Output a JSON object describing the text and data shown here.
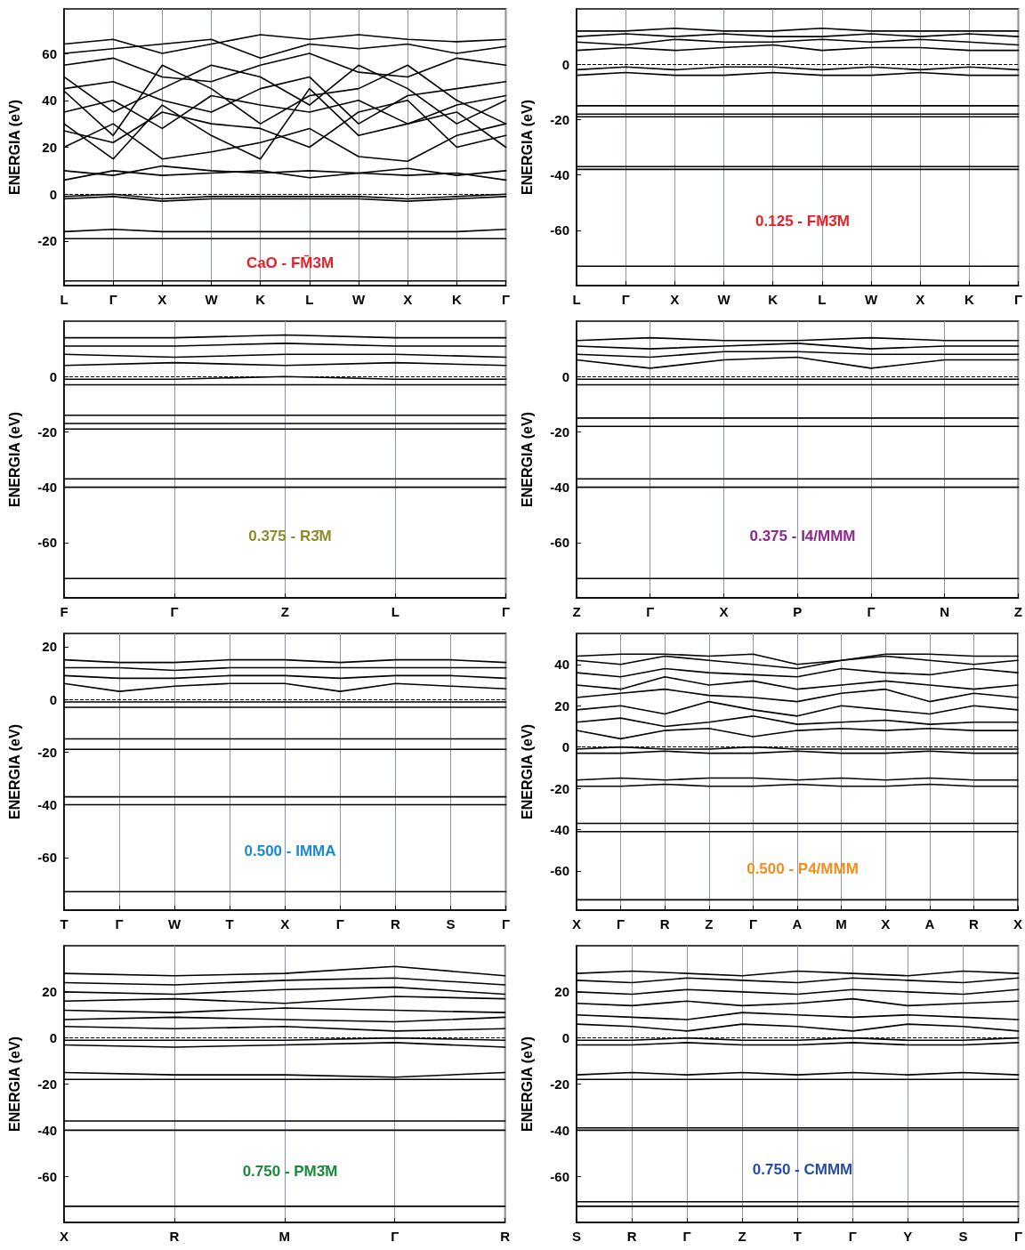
{
  "chart_data": [
    {
      "type": "line",
      "title": "CaO - FM̄3M",
      "ylabel": "ENERGIA (eV)",
      "color": "#000000",
      "marker": "none",
      "grid": "x",
      "ylim": [
        -39,
        79
      ],
      "yticks": [
        -20,
        0,
        20,
        40,
        60
      ],
      "categories": [
        "L",
        "Γ",
        "X",
        "W",
        "K",
        "L",
        "W",
        "X",
        "K",
        "Γ"
      ],
      "ref_lines": [
        {
          "axis": "y",
          "value": 0,
          "line_style": "dashed",
          "color": "#000000"
        }
      ],
      "series": [
        {
          "values": [
            -37,
            -37,
            -37,
            -37,
            -37,
            -37,
            -37,
            -37,
            -37,
            -37
          ]
        },
        {
          "values": [
            -19,
            -19,
            -19,
            -19,
            -19,
            -19,
            -19,
            -19,
            -19,
            -19
          ]
        },
        {
          "values": [
            -16,
            -15,
            -16,
            -16,
            -16,
            -16,
            -16,
            -16,
            -16,
            -15
          ]
        },
        {
          "values": [
            -1,
            0,
            -2,
            -1,
            -1,
            -1,
            -1,
            -2,
            -1,
            0
          ]
        },
        {
          "values": [
            -2,
            -1,
            -3,
            -2,
            -2,
            -2,
            -2,
            -3,
            -2,
            -1
          ]
        },
        {
          "values": [
            6,
            10,
            8,
            9,
            10,
            7,
            9,
            8,
            9,
            6
          ]
        },
        {
          "values": [
            10,
            8,
            12,
            10,
            9,
            10,
            9,
            11,
            8,
            10
          ]
        },
        {
          "values": [
            20,
            30,
            15,
            18,
            22,
            28,
            16,
            14,
            25,
            30
          ]
        },
        {
          "values": [
            27,
            22,
            35,
            30,
            28,
            20,
            35,
            40,
            20,
            25
          ]
        },
        {
          "values": [
            35,
            40,
            28,
            42,
            38,
            35,
            40,
            30,
            38,
            42
          ]
        },
        {
          "values": [
            45,
            48,
            40,
            35,
            45,
            50,
            30,
            42,
            45,
            48
          ]
        },
        {
          "values": [
            55,
            58,
            50,
            48,
            55,
            60,
            52,
            50,
            58,
            55
          ]
        },
        {
          "values": [
            60,
            62,
            64,
            66,
            58,
            64,
            62,
            64,
            60,
            63
          ]
        },
        {
          "values": [
            64,
            66,
            60,
            64,
            68,
            66,
            68,
            66,
            65,
            66
          ]
        },
        {
          "values": [
            44,
            25,
            55,
            45,
            30,
            42,
            45,
            55,
            40,
            30
          ]
        },
        {
          "values": [
            50,
            35,
            45,
            55,
            50,
            38,
            55,
            45,
            30,
            40
          ]
        },
        {
          "values": [
            30,
            15,
            38,
            25,
            15,
            45,
            25,
            30,
            35,
            20
          ]
        }
      ]
    },
    {
      "type": "line",
      "title": "0.125 - FM3̄M",
      "ylabel": "ENERGIA (eV)",
      "color": "#000000",
      "marker": "none",
      "grid": "x",
      "ylim": [
        -80,
        20
      ],
      "yticks": [
        -60,
        -40,
        -20,
        0
      ],
      "categories": [
        "L",
        "Γ",
        "X",
        "W",
        "K",
        "L",
        "W",
        "X",
        "K",
        "Γ"
      ],
      "ref_lines": [
        {
          "axis": "y",
          "value": 0,
          "line_style": "dashed",
          "color": "#000000"
        }
      ],
      "series": [
        {
          "values": [
            -73,
            -73,
            -73,
            -73,
            -73,
            -73,
            -73,
            -73,
            -73,
            -73
          ]
        },
        {
          "values": [
            -38,
            -38,
            -38,
            -38,
            -38,
            -38,
            -38,
            -38,
            -38,
            -38
          ]
        },
        {
          "values": [
            -37,
            -37,
            -37,
            -37,
            -37,
            -37,
            -37,
            -37,
            -37,
            -37
          ]
        },
        {
          "values": [
            -19,
            -19,
            -19,
            -19,
            -19,
            -19,
            -19,
            -19,
            -19,
            -19
          ]
        },
        {
          "values": [
            -18,
            -18,
            -18,
            -18,
            -18,
            -18,
            -18,
            -18,
            -18,
            -18
          ]
        },
        {
          "values": [
            -15,
            -15,
            -15,
            -15,
            -15,
            -15,
            -15,
            -15,
            -15,
            -15
          ]
        },
        {
          "values": [
            -4,
            -3,
            -4,
            -4,
            -3,
            -4,
            -4,
            -3,
            -4,
            -4
          ]
        },
        {
          "values": [
            -2,
            -1,
            -2,
            -1,
            -1,
            -2,
            -1,
            -2,
            -1,
            -2
          ]
        },
        {
          "values": [
            5,
            6,
            5,
            6,
            7,
            5,
            6,
            6,
            5,
            5
          ]
        },
        {
          "values": [
            8,
            7,
            9,
            8,
            8,
            9,
            8,
            9,
            8,
            7
          ]
        },
        {
          "values": [
            10,
            11,
            10,
            11,
            10,
            10,
            11,
            10,
            11,
            10
          ]
        },
        {
          "values": [
            12,
            12,
            13,
            12,
            12,
            13,
            12,
            12,
            12,
            12
          ]
        }
      ]
    },
    {
      "type": "line",
      "title": "0.375 - R3̄M",
      "ylabel": "ENERGIA (eV)",
      "color": "#000000",
      "marker": "none",
      "grid": "x",
      "ylim": [
        -80,
        20
      ],
      "yticks": [
        -60,
        -40,
        -20,
        0
      ],
      "categories": [
        "F",
        "Γ",
        "Z",
        "L",
        "Γ"
      ],
      "ref_lines": [
        {
          "axis": "y",
          "value": 0,
          "line_style": "dashed",
          "color": "#000000"
        }
      ],
      "series": [
        {
          "values": [
            -73,
            -73,
            -73,
            -73,
            -73
          ]
        },
        {
          "values": [
            -40,
            -40,
            -40,
            -40,
            -40
          ]
        },
        {
          "values": [
            -37,
            -37,
            -37,
            -37,
            -37
          ]
        },
        {
          "values": [
            -19,
            -19,
            -19,
            -19,
            -19
          ]
        },
        {
          "values": [
            -17,
            -17,
            -17,
            -17,
            -17
          ]
        },
        {
          "values": [
            -14,
            -14,
            -14,
            -14,
            -14
          ]
        },
        {
          "values": [
            -3,
            -3,
            -3,
            -3,
            -3
          ]
        },
        {
          "values": [
            -1,
            -1,
            0,
            -1,
            -1
          ]
        },
        {
          "values": [
            4,
            5,
            4,
            5,
            4
          ]
        },
        {
          "values": [
            8,
            7,
            8,
            8,
            7
          ]
        },
        {
          "values": [
            11,
            11,
            12,
            11,
            11
          ]
        },
        {
          "values": [
            14,
            14,
            15,
            14,
            14
          ]
        }
      ]
    },
    {
      "type": "line",
      "title": "0.375 - I4/MMM",
      "ylabel": "ENERGIA (eV)",
      "color": "#000000",
      "marker": "none",
      "grid": "x",
      "ylim": [
        -80,
        20
      ],
      "yticks": [
        -60,
        -40,
        -20,
        0
      ],
      "categories": [
        "Z",
        "Γ",
        "X",
        "P",
        "Γ",
        "N",
        "Z"
      ],
      "ref_lines": [
        {
          "axis": "y",
          "value": 0,
          "line_style": "dashed",
          "color": "#000000"
        }
      ],
      "series": [
        {
          "values": [
            -73,
            -73,
            -73,
            -73,
            -73,
            -73,
            -73
          ]
        },
        {
          "values": [
            -40,
            -40,
            -40,
            -40,
            -40,
            -40,
            -40
          ]
        },
        {
          "values": [
            -37,
            -37,
            -37,
            -37,
            -37,
            -37,
            -37
          ]
        },
        {
          "values": [
            -18,
            -18,
            -18,
            -18,
            -18,
            -18,
            -18
          ]
        },
        {
          "values": [
            -15,
            -15,
            -15,
            -15,
            -15,
            -15,
            -15
          ]
        },
        {
          "values": [
            -3,
            -3,
            -3,
            -3,
            -3,
            -3,
            -3
          ]
        },
        {
          "values": [
            -1,
            -1,
            -1,
            -1,
            -1,
            -1,
            -1
          ]
        },
        {
          "values": [
            6,
            3,
            6,
            7,
            3,
            6,
            6
          ]
        },
        {
          "values": [
            8,
            7,
            9,
            9,
            8,
            8,
            8
          ]
        },
        {
          "values": [
            11,
            10,
            11,
            12,
            10,
            11,
            11
          ]
        },
        {
          "values": [
            13,
            14,
            13,
            13,
            14,
            13,
            13
          ]
        }
      ]
    },
    {
      "type": "line",
      "title": "0.500 - IMMA",
      "ylabel": "ENERGIA (eV)",
      "color": "#000000",
      "marker": "none",
      "grid": "x",
      "ylim": [
        -80,
        25
      ],
      "yticks": [
        -60,
        -40,
        -20,
        0,
        20
      ],
      "categories": [
        "T",
        "Γ",
        "W",
        "T",
        "X",
        "Γ",
        "R",
        "S",
        "Γ"
      ],
      "ref_lines": [
        {
          "axis": "y",
          "value": 0,
          "line_style": "dashed",
          "color": "#000000"
        }
      ],
      "series": [
        {
          "values": [
            -73,
            -73,
            -73,
            -73,
            -73,
            -73,
            -73,
            -73,
            -73
          ]
        },
        {
          "values": [
            -40,
            -40,
            -40,
            -40,
            -40,
            -40,
            -40,
            -40,
            -40
          ]
        },
        {
          "values": [
            -37,
            -37,
            -37,
            -37,
            -37,
            -37,
            -37,
            -37,
            -37
          ]
        },
        {
          "values": [
            -19,
            -19,
            -19,
            -19,
            -19,
            -19,
            -19,
            -19,
            -19
          ]
        },
        {
          "values": [
            -15,
            -15,
            -15,
            -15,
            -15,
            -15,
            -15,
            -15,
            -15
          ]
        },
        {
          "values": [
            -3,
            -3,
            -3,
            -3,
            -3,
            -3,
            -3,
            -3,
            -3
          ]
        },
        {
          "values": [
            -1,
            -1,
            -1,
            -1,
            -1,
            -1,
            -1,
            -1,
            -1
          ]
        },
        {
          "values": [
            6,
            3,
            5,
            6,
            6,
            3,
            6,
            5,
            4
          ]
        },
        {
          "values": [
            9,
            8,
            8,
            9,
            9,
            8,
            9,
            9,
            8
          ]
        },
        {
          "values": [
            12,
            12,
            11,
            12,
            12,
            12,
            12,
            12,
            12
          ]
        },
        {
          "values": [
            15,
            14,
            14,
            15,
            15,
            14,
            15,
            15,
            14
          ]
        }
      ]
    },
    {
      "type": "line",
      "title": "0.500 - P4/MMM",
      "ylabel": "ENERGIA (eV)",
      "color": "#000000",
      "marker": "none",
      "grid": "x",
      "ylim": [
        -79,
        55
      ],
      "yticks": [
        -60,
        -40,
        -20,
        0,
        20,
        40
      ],
      "categories": [
        "X",
        "Γ",
        "R",
        "Z",
        "Γ",
        "A",
        "M",
        "X",
        "A",
        "R",
        "X"
      ],
      "ref_lines": [
        {
          "axis": "y",
          "value": 0,
          "line_style": "dashed",
          "color": "#000000"
        }
      ],
      "series": [
        {
          "values": [
            -74,
            -74,
            -74,
            -74,
            -74,
            -74,
            -74,
            -74,
            -74,
            -74,
            -74
          ]
        },
        {
          "values": [
            -41,
            -41,
            -41,
            -41,
            -41,
            -41,
            -41,
            -41,
            -41,
            -41,
            -41
          ]
        },
        {
          "values": [
            -37,
            -37,
            -37,
            -37,
            -37,
            -37,
            -37,
            -37,
            -37,
            -37,
            -37
          ]
        },
        {
          "values": [
            -19,
            -19,
            -18,
            -19,
            -19,
            -18,
            -19,
            -19,
            -18,
            -19,
            -19
          ]
        },
        {
          "values": [
            -16,
            -15,
            -16,
            -15,
            -15,
            -16,
            -15,
            -16,
            -15,
            -16,
            -16
          ]
        },
        {
          "values": [
            -3,
            -3,
            -2,
            -3,
            -3,
            -2,
            -3,
            -3,
            -2,
            -3,
            -3
          ]
        },
        {
          "values": [
            -1,
            0,
            -1,
            -1,
            0,
            -1,
            -1,
            -1,
            -1,
            -1,
            -1
          ]
        },
        {
          "values": [
            8,
            4,
            8,
            9,
            5,
            8,
            9,
            8,
            9,
            8,
            8
          ]
        },
        {
          "values": [
            12,
            14,
            10,
            12,
            15,
            11,
            12,
            13,
            11,
            12,
            12
          ]
        },
        {
          "values": [
            18,
            20,
            16,
            22,
            18,
            15,
            20,
            18,
            16,
            20,
            18
          ]
        },
        {
          "values": [
            24,
            26,
            28,
            25,
            24,
            22,
            26,
            28,
            22,
            26,
            24
          ]
        },
        {
          "values": [
            30,
            28,
            34,
            30,
            32,
            28,
            30,
            32,
            30,
            28,
            30
          ]
        },
        {
          "values": [
            36,
            34,
            38,
            36,
            35,
            34,
            38,
            36,
            35,
            38,
            36
          ]
        },
        {
          "values": [
            42,
            40,
            44,
            42,
            40,
            38,
            42,
            44,
            42,
            40,
            42
          ]
        },
        {
          "values": [
            44,
            45,
            45,
            44,
            45,
            40,
            42,
            45,
            45,
            44,
            44
          ]
        }
      ]
    },
    {
      "type": "line",
      "title": "0.750 - PM3̄M",
      "ylabel": "ENERGIA (eV)",
      "color": "#000000",
      "marker": "none",
      "grid": "x",
      "ylim": [
        -80,
        40
      ],
      "yticks": [
        -60,
        -40,
        -20,
        0,
        20
      ],
      "categories": [
        "X",
        "R",
        "M",
        "Γ",
        "R"
      ],
      "ref_lines": [
        {
          "axis": "y",
          "value": 0,
          "line_style": "dashed",
          "color": "#000000"
        }
      ],
      "series": [
        {
          "values": [
            -73,
            -73,
            -73,
            -73,
            -73
          ]
        },
        {
          "values": [
            -40,
            -40,
            -40,
            -40,
            -40
          ]
        },
        {
          "values": [
            -36,
            -36,
            -36,
            -36,
            -36
          ]
        },
        {
          "values": [
            -18,
            -18,
            -18,
            -18,
            -18
          ]
        },
        {
          "values": [
            -15,
            -16,
            -16,
            -17,
            -15
          ]
        },
        {
          "values": [
            -3,
            -4,
            -3,
            -2,
            -4
          ]
        },
        {
          "values": [
            -1,
            -1,
            -1,
            0,
            -1
          ]
        },
        {
          "values": [
            5,
            4,
            5,
            3,
            4
          ]
        },
        {
          "values": [
            8,
            9,
            8,
            7,
            9
          ]
        },
        {
          "values": [
            12,
            11,
            13,
            12,
            11
          ]
        },
        {
          "values": [
            16,
            17,
            15,
            18,
            17
          ]
        },
        {
          "values": [
            20,
            19,
            21,
            22,
            19
          ]
        },
        {
          "values": [
            24,
            23,
            25,
            26,
            23
          ]
        },
        {
          "values": [
            28,
            27,
            28,
            31,
            27
          ]
        }
      ]
    },
    {
      "type": "line",
      "title": "0.750 - CMMM",
      "ylabel": "ENERGIA (eV)",
      "color": "#000000",
      "marker": "none",
      "grid": "x",
      "ylim": [
        -80,
        40
      ],
      "yticks": [
        -60,
        -40,
        -20,
        0,
        20
      ],
      "categories": [
        "S",
        "R",
        "Γ",
        "Z",
        "T",
        "Γ",
        "Y",
        "S",
        "Γ"
      ],
      "ref_lines": [
        {
          "axis": "y",
          "value": 0,
          "line_style": "dashed",
          "color": "#000000"
        }
      ],
      "series": [
        {
          "values": [
            -73,
            -73,
            -73,
            -73,
            -73,
            -73,
            -73,
            -73,
            -73
          ]
        },
        {
          "values": [
            -71,
            -71,
            -71,
            -71,
            -71,
            -71,
            -71,
            -71,
            -71
          ]
        },
        {
          "values": [
            -40,
            -40,
            -40,
            -40,
            -40,
            -40,
            -40,
            -40,
            -40
          ]
        },
        {
          "values": [
            -39,
            -39,
            -39,
            -39,
            -39,
            -39,
            -39,
            -39,
            -39
          ]
        },
        {
          "values": [
            -18,
            -18,
            -18,
            -18,
            -18,
            -18,
            -18,
            -18,
            -18
          ]
        },
        {
          "values": [
            -16,
            -15,
            -16,
            -15,
            -16,
            -15,
            -16,
            -15,
            -16
          ]
        },
        {
          "values": [
            -3,
            -3,
            -2,
            -3,
            -3,
            -2,
            -3,
            -3,
            -2
          ]
        },
        {
          "values": [
            -1,
            -1,
            0,
            -1,
            -1,
            0,
            -1,
            -1,
            0
          ]
        },
        {
          "values": [
            6,
            5,
            3,
            6,
            5,
            3,
            6,
            5,
            3
          ]
        },
        {
          "values": [
            10,
            9,
            8,
            11,
            10,
            9,
            10,
            9,
            8
          ]
        },
        {
          "values": [
            15,
            14,
            16,
            14,
            15,
            17,
            14,
            15,
            16
          ]
        },
        {
          "values": [
            20,
            19,
            21,
            20,
            19,
            21,
            20,
            19,
            21
          ]
        },
        {
          "values": [
            25,
            24,
            26,
            25,
            24,
            26,
            25,
            24,
            26
          ]
        },
        {
          "values": [
            28,
            29,
            28,
            27,
            29,
            28,
            27,
            29,
            28
          ]
        }
      ]
    }
  ]
}
